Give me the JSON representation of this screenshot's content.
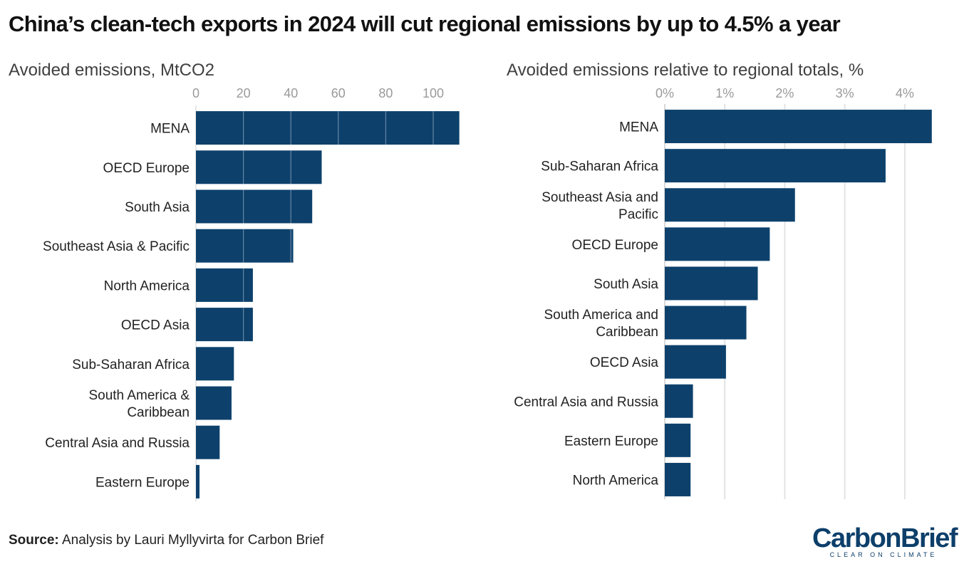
{
  "title": "China’s clean-tech exports in 2024 will cut regional emissions by up to 4.5% a year",
  "footer": {
    "source_label": "Source:",
    "source_text": "Analysis by Lauri Myllyvirta for Carbon Brief"
  },
  "logo": {
    "word": "CarbonBrief",
    "tagline": "CLEAR ON CLIMATE"
  },
  "colors": {
    "bar": "#0d416c",
    "grid": "#e3e3e3",
    "tick": "#9a9a9a"
  },
  "chart_data": [
    {
      "type": "bar",
      "orientation": "horizontal",
      "subtitle": "Avoided emissions, MtCO2",
      "xlim": [
        0,
        112
      ],
      "ticks": [
        0,
        20,
        40,
        60,
        80,
        100
      ],
      "tick_labels": [
        "0",
        "20",
        "40",
        "60",
        "80",
        "100"
      ],
      "categories": [
        [
          "MENA"
        ],
        [
          "OECD Europe"
        ],
        [
          "South Asia"
        ],
        [
          "Southeast Asia & Pacific"
        ],
        [
          "North America"
        ],
        [
          "OECD Asia"
        ],
        [
          "Sub-Saharan Africa"
        ],
        [
          "South America &",
          "Caribbean"
        ],
        [
          "Central Asia and Russia"
        ],
        [
          "Eastern Europe"
        ]
      ],
      "values": [
        111,
        53,
        49,
        41,
        24,
        24,
        16,
        15,
        10,
        1.5
      ]
    },
    {
      "type": "bar",
      "orientation": "horizontal",
      "subtitle": "Avoided emissions relative to regional totals, %",
      "xlim": [
        0,
        4.5
      ],
      "ticks": [
        0,
        1,
        2,
        3,
        4
      ],
      "tick_labels": [
        "0%",
        "1%",
        "2%",
        "3%",
        "4%"
      ],
      "categories": [
        [
          "MENA"
        ],
        [
          "Sub-Saharan Africa"
        ],
        [
          "Southeast Asia and",
          "Pacific"
        ],
        [
          "OECD Europe"
        ],
        [
          "South Asia"
        ],
        [
          "South America and",
          "Caribbean"
        ],
        [
          "OECD Asia"
        ],
        [
          "Central Asia and Russia"
        ],
        [
          "Eastern Europe"
        ],
        [
          "North America"
        ]
      ],
      "values": [
        4.45,
        3.68,
        2.17,
        1.75,
        1.55,
        1.36,
        1.02,
        0.47,
        0.43,
        0.43
      ]
    }
  ]
}
